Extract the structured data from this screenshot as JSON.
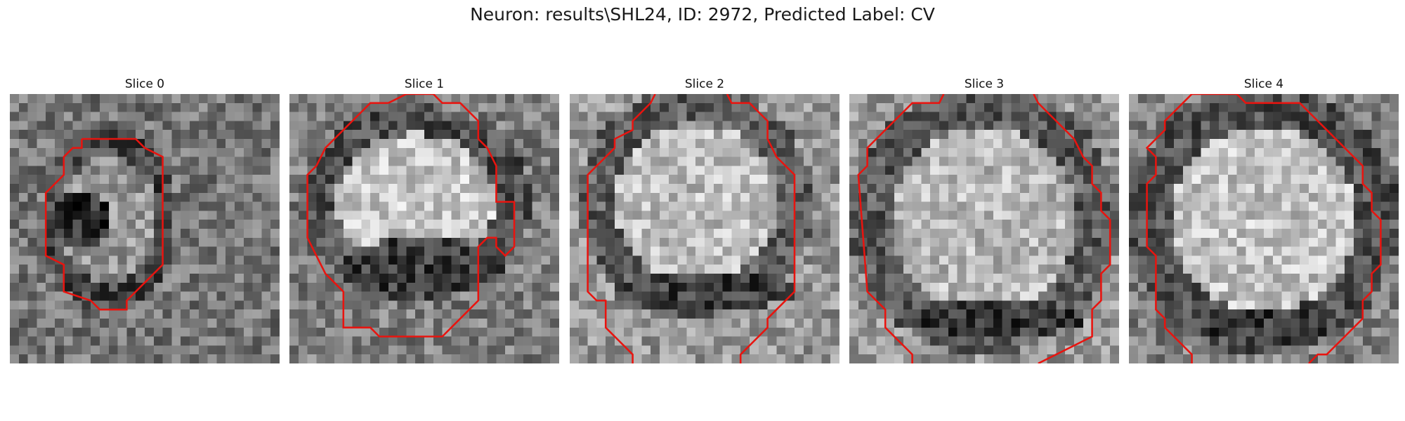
{
  "figure": {
    "title": "Neuron: results\\SHL24, ID: 2972, Predicted Label: CV"
  },
  "colors": {
    "contour": "#e8140f"
  },
  "slices": [
    {
      "label": "Slice 0"
    },
    {
      "label": "Slice 1"
    },
    {
      "label": "Slice 2"
    },
    {
      "label": "Slice 3"
    },
    {
      "label": "Slice 4"
    }
  ]
}
